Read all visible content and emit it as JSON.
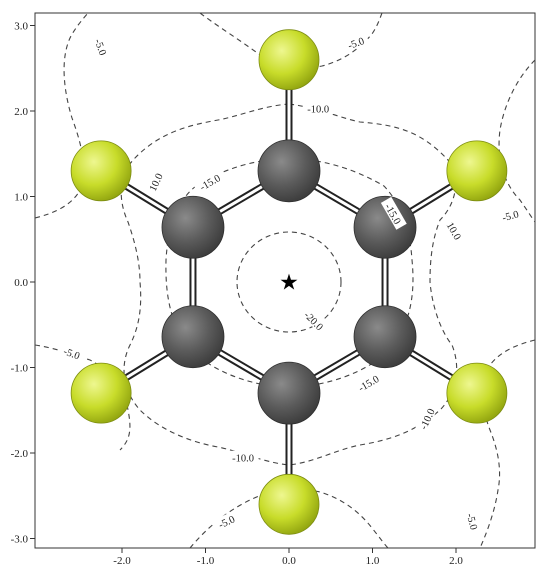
{
  "colors": {
    "carbon": "#5b5b5b",
    "fluorine": "#c8dc2a",
    "contour": "#444444",
    "frame": "#333333"
  },
  "axes": {
    "x_ticks": [
      "-2.0",
      "-1.0",
      "0.0",
      "1.0",
      "2.0"
    ],
    "y_ticks": [
      "3.0",
      "2.0",
      "1.0",
      "0.0",
      "-1.0",
      "-2.0",
      "-3.0"
    ],
    "x_values": [
      -2,
      -1,
      0,
      1,
      2
    ],
    "y_values": [
      3,
      2,
      1,
      0,
      -1,
      -2,
      -3
    ],
    "xlim": [
      -3.0,
      2.85
    ],
    "ylim": [
      -3.13,
      3.15
    ]
  },
  "marker": {
    "symbol": "★",
    "icon": "star-icon",
    "x": 0.0,
    "y": 0.0
  },
  "molecule": {
    "carbons": [
      {
        "x": 0.0,
        "y": 1.3
      },
      {
        "x": 1.15,
        "y": 0.64
      },
      {
        "x": 1.15,
        "y": -0.64
      },
      {
        "x": 0.0,
        "y": -1.3
      },
      {
        "x": -1.15,
        "y": -0.64
      },
      {
        "x": -1.15,
        "y": 0.64
      }
    ],
    "fluorines": [
      {
        "x": 0.0,
        "y": 2.6
      },
      {
        "x": 2.25,
        "y": 1.3
      },
      {
        "x": 2.25,
        "y": -1.3
      },
      {
        "x": 0.0,
        "y": -2.6
      },
      {
        "x": -2.25,
        "y": -1.3
      },
      {
        "x": -2.25,
        "y": 1.3
      }
    ]
  },
  "contour_labels": [
    {
      "text": "-5.0",
      "x": -2.25,
      "y": 2.75,
      "rot": 70
    },
    {
      "text": "-5.0",
      "x": 0.8,
      "y": 2.8,
      "rot": -20
    },
    {
      "text": "-10.0",
      "x": 0.35,
      "y": 2.03,
      "rot": 0
    },
    {
      "text": "10.0",
      "x": -1.6,
      "y": 1.17,
      "rot": -65
    },
    {
      "text": "-15.0",
      "x": -0.95,
      "y": 1.17,
      "rot": -30
    },
    {
      "text": "-15.0",
      "x": 1.25,
      "y": 0.8,
      "rot": 60
    },
    {
      "text": "10.0",
      "x": 1.98,
      "y": 0.6,
      "rot": 60
    },
    {
      "text": "-5.0",
      "x": 2.65,
      "y": 0.78,
      "rot": -15
    },
    {
      "text": "-20.0",
      "x": 0.3,
      "y": -0.45,
      "rot": 45
    },
    {
      "text": "-5.0",
      "x": -2.6,
      "y": -0.83,
      "rot": 20
    },
    {
      "text": "-15.0",
      "x": 0.95,
      "y": -1.18,
      "rot": -30
    },
    {
      "text": "-10.0",
      "x": 1.65,
      "y": -1.6,
      "rot": -65
    },
    {
      "text": "-10.0",
      "x": -0.55,
      "y": -2.05,
      "rot": 0
    },
    {
      "text": "-5.0",
      "x": -0.75,
      "y": -2.8,
      "rot": -25
    },
    {
      "text": "-5.0",
      "x": 2.2,
      "y": -2.8,
      "rot": 75
    }
  ]
}
